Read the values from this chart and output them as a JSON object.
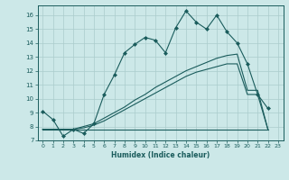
{
  "xlabel": "Humidex (Indice chaleur)",
  "ylabel": "",
  "background_color": "#cce8e8",
  "grid_color": "#aacccc",
  "line_color": "#1a5c5c",
  "xlim": [
    -0.5,
    23.5
  ],
  "ylim": [
    7,
    16.7
  ],
  "xtick_labels": [
    "0",
    "1",
    "2",
    "3",
    "4",
    "5",
    "6",
    "7",
    "8",
    "9",
    "10",
    "11",
    "12",
    "13",
    "14",
    "15",
    "16",
    "17",
    "18",
    "19",
    "20",
    "21",
    "22",
    "23"
  ],
  "xticks": [
    0,
    1,
    2,
    3,
    4,
    5,
    6,
    7,
    8,
    9,
    10,
    11,
    12,
    13,
    14,
    15,
    16,
    17,
    18,
    19,
    20,
    21,
    22,
    23
  ],
  "yticks": [
    7,
    8,
    9,
    10,
    11,
    12,
    13,
    14,
    15,
    16
  ],
  "series1_x": [
    0,
    1,
    2,
    3,
    4,
    5,
    6,
    7,
    8,
    9,
    10,
    11,
    12,
    13,
    14,
    15,
    16,
    17,
    18,
    19,
    20,
    21,
    22
  ],
  "series1_y": [
    9.1,
    8.5,
    7.3,
    7.8,
    7.5,
    8.2,
    10.3,
    11.7,
    13.3,
    13.9,
    14.4,
    14.2,
    13.3,
    15.1,
    16.3,
    15.5,
    15.0,
    16.0,
    14.8,
    14.0,
    12.5,
    10.3,
    9.3
  ],
  "series2_x": [
    0,
    1,
    2,
    3,
    4,
    5,
    6,
    7,
    8,
    9,
    10,
    11,
    12,
    13,
    14,
    15,
    16,
    17,
    18,
    19,
    22
  ],
  "series2_y": [
    7.8,
    7.8,
    7.8,
    7.8,
    7.8,
    7.8,
    7.8,
    7.8,
    7.8,
    7.8,
    7.8,
    7.8,
    7.8,
    7.8,
    7.8,
    7.8,
    7.8,
    7.8,
    7.8,
    7.8,
    7.8
  ],
  "series3_x": [
    0,
    1,
    2,
    3,
    4,
    5,
    6,
    7,
    8,
    9,
    10,
    11,
    12,
    13,
    14,
    15,
    16,
    17,
    18,
    19,
    20,
    21,
    22
  ],
  "series3_y": [
    7.8,
    7.8,
    7.8,
    7.8,
    7.9,
    8.1,
    8.4,
    8.8,
    9.2,
    9.6,
    10.0,
    10.4,
    10.8,
    11.2,
    11.6,
    11.9,
    12.1,
    12.3,
    12.5,
    12.5,
    10.3,
    10.3,
    7.8
  ],
  "series4_x": [
    0,
    1,
    2,
    3,
    4,
    5,
    6,
    7,
    8,
    9,
    10,
    11,
    12,
    13,
    14,
    15,
    16,
    17,
    18,
    19,
    20,
    21,
    22
  ],
  "series4_y": [
    7.8,
    7.8,
    7.8,
    7.8,
    8.0,
    8.2,
    8.6,
    9.0,
    9.4,
    9.9,
    10.3,
    10.8,
    11.2,
    11.6,
    12.0,
    12.3,
    12.6,
    12.9,
    13.1,
    13.2,
    10.6,
    10.6,
    7.8
  ]
}
